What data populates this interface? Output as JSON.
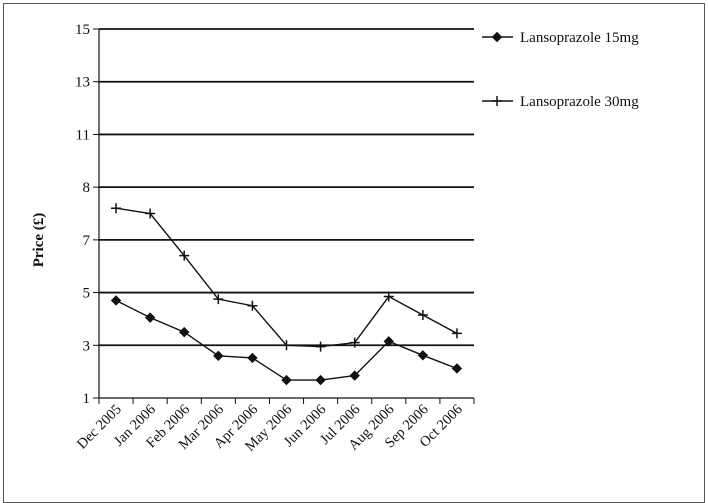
{
  "chart_data": {
    "type": "line",
    "title": "",
    "xlabel": "",
    "ylabel": "Price (£)",
    "categories": [
      "Dec 2005",
      "Jan 2006",
      "Feb 2006",
      "Mar 2006",
      "Apr 2006",
      "May 2006",
      "Jun 2006",
      "Jul 2006",
      "Aug 2006",
      "Sep 2006",
      "Oct 2006"
    ],
    "y_ticks": [
      "1",
      "3",
      "5",
      "7",
      "8",
      "11",
      "13",
      "15"
    ],
    "grid": true,
    "legend_position": "right",
    "series": [
      {
        "name": "Lansoprazole 15mg",
        "marker": "diamond",
        "color": "#111111",
        "values": [
          4.7,
          4.05,
          3.5,
          2.6,
          2.52,
          1.68,
          1.68,
          1.85,
          3.15,
          2.62,
          2.12
        ]
      },
      {
        "name": "Lansoprazole 30mg",
        "marker": "plus",
        "color": "#111111",
        "values": [
          7.6,
          7.5,
          6.4,
          4.75,
          4.5,
          3.0,
          2.95,
          3.1,
          4.85,
          4.15,
          3.45
        ]
      }
    ]
  }
}
